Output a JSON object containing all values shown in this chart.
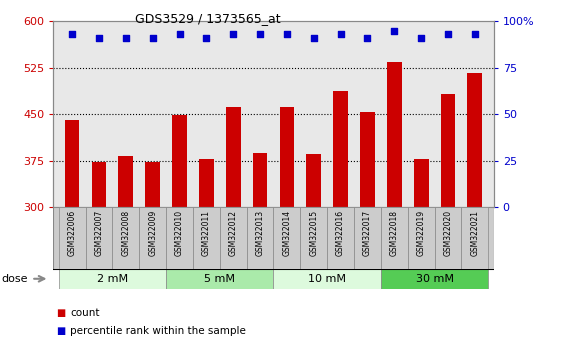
{
  "title": "GDS3529 / 1373565_at",
  "categories": [
    "GSM322006",
    "GSM322007",
    "GSM322008",
    "GSM322009",
    "GSM322010",
    "GSM322011",
    "GSM322012",
    "GSM322013",
    "GSM322014",
    "GSM322015",
    "GSM322016",
    "GSM322017",
    "GSM322018",
    "GSM322019",
    "GSM322020",
    "GSM322021"
  ],
  "bar_values": [
    440,
    373,
    383,
    373,
    449,
    378,
    462,
    388,
    462,
    385,
    487,
    453,
    535,
    378,
    482,
    517
  ],
  "dot_values": [
    93,
    91,
    91,
    91,
    93,
    91,
    93,
    93,
    93,
    91,
    93,
    91,
    95,
    91,
    93,
    93
  ],
  "bar_color": "#cc0000",
  "dot_color": "#0000cc",
  "ylim_left": [
    300,
    600
  ],
  "ylim_right": [
    0,
    100
  ],
  "yticks_left": [
    300,
    375,
    450,
    525,
    600
  ],
  "yticks_right": [
    0,
    25,
    50,
    75,
    100
  ],
  "ytick_labels_right": [
    "0",
    "25",
    "50",
    "75",
    "100%"
  ],
  "dose_groups": [
    {
      "label": "2 mM",
      "start": 0,
      "end": 3,
      "color": "#ddfadd"
    },
    {
      "label": "5 mM",
      "start": 4,
      "end": 7,
      "color": "#aaeaaa"
    },
    {
      "label": "10 mM",
      "start": 8,
      "end": 11,
      "color": "#ddfadd"
    },
    {
      "label": "30 mM",
      "start": 12,
      "end": 15,
      "color": "#55cc55"
    }
  ],
  "legend_count_label": "count",
  "legend_percentile_label": "percentile rank within the sample",
  "dose_label": "dose",
  "background_color": "#ffffff",
  "plot_bg_color": "#e8e8e8",
  "xtick_bg_color": "#cccccc",
  "grid_color": "#000000"
}
